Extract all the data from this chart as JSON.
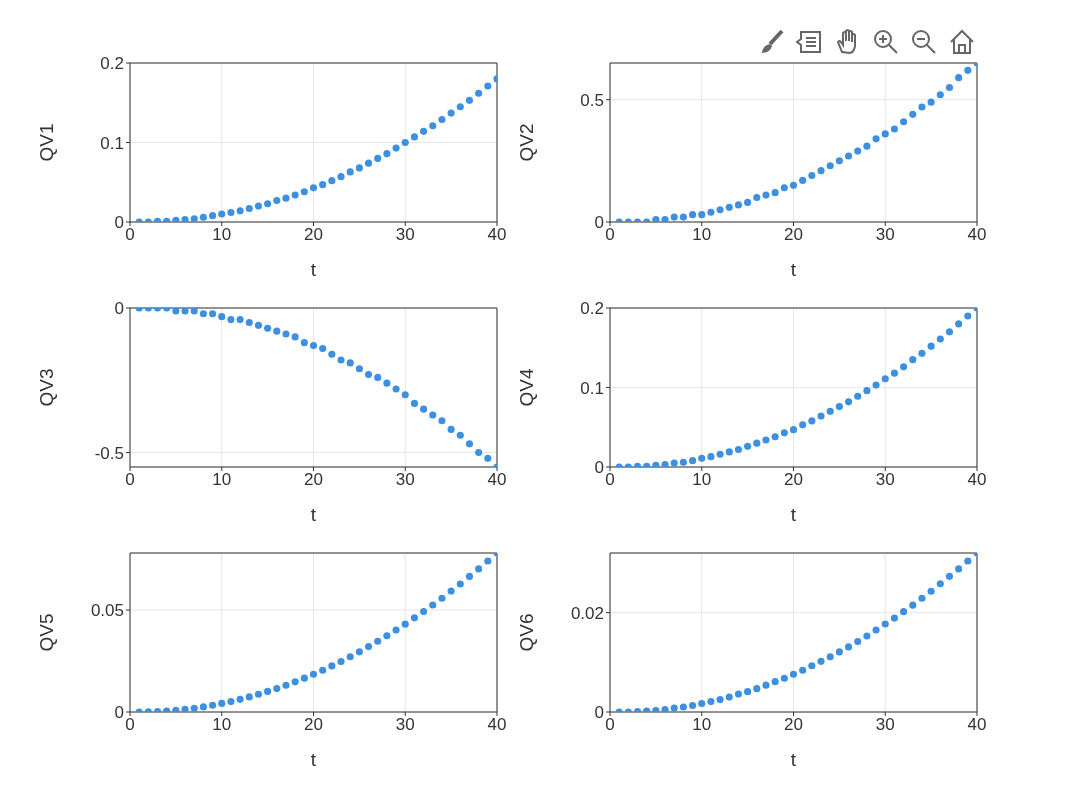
{
  "chart_data": [
    {
      "type": "scatter",
      "xlabel": "t",
      "ylabel": "QV1",
      "xlim": [
        0,
        40
      ],
      "xticks": [
        0,
        10,
        20,
        30,
        40
      ],
      "ylim": [
        0,
        0.2
      ],
      "yticks": [
        0,
        0.1,
        0.2
      ],
      "grid": true,
      "marker": "circle",
      "color": "#3d8fe0",
      "x": [
        1,
        2,
        3,
        4,
        5,
        6,
        7,
        8,
        9,
        10,
        11,
        12,
        13,
        14,
        15,
        16,
        17,
        18,
        19,
        20,
        21,
        22,
        23,
        24,
        25,
        26,
        27,
        28,
        29,
        30,
        31,
        32,
        33,
        34,
        35,
        36,
        37,
        38,
        39,
        40
      ],
      "values": [
        0,
        0,
        0.001,
        0.001,
        0.002,
        0.003,
        0.004,
        0.006,
        0.008,
        0.01,
        0.012,
        0.014,
        0.017,
        0.02,
        0.023,
        0.027,
        0.03,
        0.034,
        0.038,
        0.043,
        0.047,
        0.052,
        0.057,
        0.063,
        0.068,
        0.074,
        0.08,
        0.086,
        0.093,
        0.1,
        0.107,
        0.114,
        0.121,
        0.129,
        0.137,
        0.145,
        0.153,
        0.162,
        0.171,
        0.18
      ]
    },
    {
      "type": "scatter",
      "xlabel": "t",
      "ylabel": "QV2",
      "xlim": [
        0,
        40
      ],
      "xticks": [
        0,
        10,
        20,
        30,
        40
      ],
      "ylim": [
        0,
        0.65
      ],
      "yticks": [
        0,
        0.5
      ],
      "grid": true,
      "marker": "circle",
      "color": "#3d8fe0",
      "x": [
        1,
        2,
        3,
        4,
        5,
        6,
        7,
        8,
        9,
        10,
        11,
        12,
        13,
        14,
        15,
        16,
        17,
        18,
        19,
        20,
        21,
        22,
        23,
        24,
        25,
        26,
        27,
        28,
        29,
        30,
        31,
        32,
        33,
        34,
        35,
        36,
        37,
        38,
        39,
        40
      ],
      "values": [
        0,
        0,
        0,
        0,
        0.01,
        0.01,
        0.02,
        0.02,
        0.03,
        0.03,
        0.04,
        0.05,
        0.06,
        0.07,
        0.08,
        0.1,
        0.11,
        0.12,
        0.14,
        0.15,
        0.17,
        0.19,
        0.21,
        0.23,
        0.25,
        0.27,
        0.29,
        0.31,
        0.34,
        0.36,
        0.38,
        0.41,
        0.44,
        0.47,
        0.49,
        0.52,
        0.55,
        0.59,
        0.62,
        0.65
      ]
    },
    {
      "type": "scatter",
      "xlabel": "t",
      "ylabel": "QV3",
      "xlim": [
        0,
        40
      ],
      "xticks": [
        0,
        10,
        20,
        30,
        40
      ],
      "ylim": [
        -0.55,
        0
      ],
      "yticks": [
        -0.5,
        0
      ],
      "grid": true,
      "marker": "circle",
      "color": "#3d8fe0",
      "x": [
        1,
        2,
        3,
        4,
        5,
        6,
        7,
        8,
        9,
        10,
        11,
        12,
        13,
        14,
        15,
        16,
        17,
        18,
        19,
        20,
        21,
        22,
        23,
        24,
        25,
        26,
        27,
        28,
        29,
        30,
        31,
        32,
        33,
        34,
        35,
        36,
        37,
        38,
        39,
        40
      ],
      "values": [
        0,
        0,
        0,
        0,
        -0.01,
        -0.01,
        -0.01,
        -0.02,
        -0.02,
        -0.03,
        -0.04,
        -0.04,
        -0.05,
        -0.06,
        -0.07,
        -0.08,
        -0.09,
        -0.1,
        -0.12,
        -0.13,
        -0.14,
        -0.16,
        -0.18,
        -0.19,
        -0.21,
        -0.23,
        -0.24,
        -0.26,
        -0.28,
        -0.3,
        -0.33,
        -0.35,
        -0.37,
        -0.39,
        -0.42,
        -0.44,
        -0.47,
        -0.5,
        -0.52,
        -0.55
      ]
    },
    {
      "type": "scatter",
      "xlabel": "t",
      "ylabel": "QV4",
      "xlim": [
        0,
        40
      ],
      "xticks": [
        0,
        10,
        20,
        30,
        40
      ],
      "ylim": [
        0,
        0.2
      ],
      "yticks": [
        0,
        0.1,
        0.2
      ],
      "grid": true,
      "marker": "circle",
      "color": "#3d8fe0",
      "x": [
        1,
        2,
        3,
        4,
        5,
        6,
        7,
        8,
        9,
        10,
        11,
        12,
        13,
        14,
        15,
        16,
        17,
        18,
        19,
        20,
        21,
        22,
        23,
        24,
        25,
        26,
        27,
        28,
        29,
        30,
        31,
        32,
        33,
        34,
        35,
        36,
        37,
        38,
        39,
        40
      ],
      "values": [
        0,
        0,
        0.001,
        0.001,
        0.002,
        0.003,
        0.005,
        0.006,
        0.008,
        0.011,
        0.013,
        0.016,
        0.019,
        0.022,
        0.026,
        0.03,
        0.034,
        0.038,
        0.043,
        0.047,
        0.053,
        0.058,
        0.064,
        0.07,
        0.076,
        0.082,
        0.089,
        0.096,
        0.103,
        0.111,
        0.118,
        0.126,
        0.135,
        0.143,
        0.152,
        0.161,
        0.17,
        0.18,
        0.19,
        0.2
      ]
    },
    {
      "type": "scatter",
      "xlabel": "t",
      "ylabel": "QV5",
      "xlim": [
        0,
        40
      ],
      "xticks": [
        0,
        10,
        20,
        30,
        40
      ],
      "ylim": [
        0,
        0.078
      ],
      "yticks": [
        0,
        0.05
      ],
      "grid": true,
      "marker": "circle",
      "color": "#3d8fe0",
      "x": [
        1,
        2,
        3,
        4,
        5,
        6,
        7,
        8,
        9,
        10,
        11,
        12,
        13,
        14,
        15,
        16,
        17,
        18,
        19,
        20,
        21,
        22,
        23,
        24,
        25,
        26,
        27,
        28,
        29,
        30,
        31,
        32,
        33,
        34,
        35,
        36,
        37,
        38,
        39,
        40
      ],
      "values": [
        0,
        0.0001,
        0.0002,
        0.0005,
        0.0008,
        0.0013,
        0.0018,
        0.0025,
        0.0033,
        0.0042,
        0.0051,
        0.0062,
        0.0074,
        0.0087,
        0.0101,
        0.0115,
        0.0131,
        0.0148,
        0.0166,
        0.0185,
        0.0205,
        0.0226,
        0.0248,
        0.0271,
        0.0295,
        0.0321,
        0.0347,
        0.0374,
        0.0402,
        0.0431,
        0.0462,
        0.0493,
        0.0525,
        0.0558,
        0.0593,
        0.0628,
        0.0665,
        0.0702,
        0.0741,
        0.078
      ]
    },
    {
      "type": "scatter",
      "xlabel": "t",
      "ylabel": "QV6",
      "xlim": [
        0,
        40
      ],
      "xticks": [
        0,
        10,
        20,
        30,
        40
      ],
      "ylim": [
        0,
        0.032
      ],
      "yticks": [
        0,
        0.02
      ],
      "grid": true,
      "marker": "circle",
      "color": "#3d8fe0",
      "x": [
        1,
        2,
        3,
        4,
        5,
        6,
        7,
        8,
        9,
        10,
        11,
        12,
        13,
        14,
        15,
        16,
        17,
        18,
        19,
        20,
        21,
        22,
        23,
        24,
        25,
        26,
        27,
        28,
        29,
        30,
        31,
        32,
        33,
        34,
        35,
        36,
        37,
        38,
        39,
        40
      ],
      "values": [
        0,
        0,
        0.0001,
        0.0002,
        0.0003,
        0.0005,
        0.0008,
        0.001,
        0.0013,
        0.0017,
        0.0021,
        0.0025,
        0.003,
        0.0036,
        0.0041,
        0.0047,
        0.0054,
        0.0061,
        0.0068,
        0.0076,
        0.0084,
        0.0093,
        0.0102,
        0.0111,
        0.0121,
        0.0131,
        0.0142,
        0.0153,
        0.0165,
        0.0177,
        0.0189,
        0.0202,
        0.0215,
        0.0229,
        0.0243,
        0.0258,
        0.0273,
        0.0288,
        0.0304,
        0.032
      ]
    }
  ]
}
